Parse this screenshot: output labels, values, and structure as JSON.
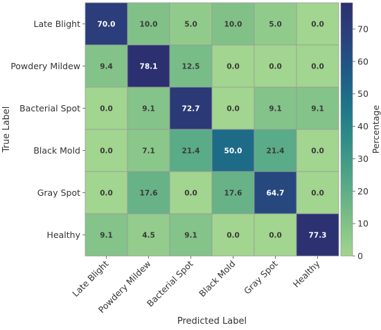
{
  "chart_data": {
    "type": "heatmap",
    "xlabel": "Predicted Label",
    "ylabel": "True Label",
    "x_categories": [
      "Late Blight",
      "Powdery Mildew",
      "Bacterial Spot",
      "Black Mold",
      "Gray Spot",
      "Healthy"
    ],
    "y_categories": [
      "Late Blight",
      "Powdery Mildew",
      "Bacterial Spot",
      "Black Mold",
      "Gray Spot",
      "Healthy"
    ],
    "values": [
      [
        70.0,
        10.0,
        5.0,
        10.0,
        5.0,
        0.0
      ],
      [
        9.4,
        78.1,
        12.5,
        0.0,
        0.0,
        0.0
      ],
      [
        0.0,
        9.1,
        72.7,
        0.0,
        9.1,
        9.1
      ],
      [
        0.0,
        7.1,
        21.4,
        50.0,
        21.4,
        0.0
      ],
      [
        0.0,
        17.6,
        0.0,
        17.6,
        64.7,
        0.0
      ],
      [
        9.1,
        4.5,
        9.1,
        0.0,
        0.0,
        77.3
      ]
    ],
    "value_labels": [
      [
        "70.0",
        "10.0",
        "5.0",
        "10.0",
        "5.0",
        "0.0"
      ],
      [
        "9.4",
        "78.1",
        "12.5",
        "0.0",
        "0.0",
        "0.0"
      ],
      [
        "0.0",
        "9.1",
        "72.7",
        "0.0",
        "9.1",
        "9.1"
      ],
      [
        "0.0",
        "7.1",
        "21.4",
        "50.0",
        "21.4",
        "0.0"
      ],
      [
        "0.0",
        "17.6",
        "0.0",
        "17.6",
        "64.7",
        "0.0"
      ],
      [
        "9.1",
        "4.5",
        "9.1",
        "0.0",
        "0.0",
        "77.3"
      ]
    ],
    "colorbar": {
      "label": "Percentage",
      "min": 0,
      "max": 78.1,
      "ticks": [
        0,
        10,
        20,
        30,
        40,
        50,
        60,
        70
      ],
      "tick_labels": [
        "0",
        "10",
        "20",
        "30",
        "40",
        "50",
        "60",
        "70"
      ],
      "colormap": "crest"
    },
    "colors": {
      "low": "#a2d58f",
      "high": "#2c3172",
      "text_dark": "#3a3a3a",
      "text_light": "#ffffff",
      "cell_border": "#999999"
    }
  }
}
